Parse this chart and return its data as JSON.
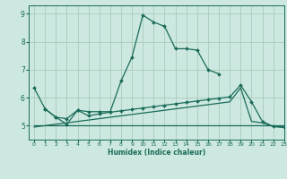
{
  "xlabel": "Humidex (Indice chaleur)",
  "bg_color": "#cce8e0",
  "grid_color": "#aaccbb",
  "line_color": "#1a6b5a",
  "xlim": [
    -0.5,
    23
  ],
  "ylim": [
    4.5,
    9.3
  ],
  "xticks": [
    0,
    1,
    2,
    3,
    4,
    5,
    6,
    7,
    8,
    9,
    10,
    11,
    12,
    13,
    14,
    15,
    16,
    17,
    18,
    19,
    20,
    21,
    22,
    23
  ],
  "yticks": [
    5,
    6,
    7,
    8,
    9
  ],
  "line1_x": [
    0,
    1,
    2,
    3,
    4,
    5,
    6,
    7,
    8,
    9,
    10,
    11,
    12,
    13,
    14,
    15,
    16,
    17
  ],
  "line1_y": [
    6.35,
    5.6,
    5.3,
    5.05,
    5.55,
    5.5,
    5.5,
    5.5,
    6.6,
    7.45,
    8.95,
    8.7,
    8.55,
    7.75,
    7.75,
    7.7,
    7.0,
    6.85
  ],
  "line2_x": [
    1,
    2,
    3,
    4,
    5,
    6,
    7,
    8,
    9,
    10,
    11,
    12,
    13,
    14,
    15,
    16,
    17,
    18,
    19,
    20,
    21,
    22,
    23
  ],
  "line2_y": [
    5.6,
    5.3,
    5.25,
    5.55,
    5.35,
    5.42,
    5.48,
    5.53,
    5.58,
    5.63,
    5.68,
    5.73,
    5.78,
    5.83,
    5.88,
    5.93,
    5.98,
    6.03,
    6.45,
    5.85,
    5.15,
    4.97,
    4.95
  ],
  "line3_x": [
    0,
    1,
    2,
    3,
    4,
    5,
    6,
    7,
    8,
    9,
    10,
    11,
    12,
    13,
    14,
    15,
    16,
    17,
    18,
    19,
    20,
    21,
    22,
    23
  ],
  "line3_y": [
    5.0,
    5.0,
    5.0,
    5.0,
    5.0,
    5.0,
    5.0,
    5.0,
    5.0,
    5.0,
    5.0,
    5.0,
    5.0,
    5.0,
    5.0,
    5.0,
    5.0,
    5.0,
    5.0,
    5.0,
    5.0,
    5.0,
    5.0,
    5.0
  ],
  "line4_x": [
    0,
    1,
    2,
    3,
    4,
    5,
    6,
    7,
    8,
    9,
    10,
    11,
    12,
    13,
    14,
    15,
    16,
    17,
    18,
    19,
    20,
    21,
    22,
    23
  ],
  "line4_y": [
    4.95,
    5.0,
    5.05,
    5.1,
    5.15,
    5.2,
    5.25,
    5.3,
    5.35,
    5.4,
    5.45,
    5.5,
    5.55,
    5.6,
    5.65,
    5.7,
    5.75,
    5.8,
    5.85,
    6.35,
    5.15,
    5.1,
    4.97,
    4.93
  ]
}
